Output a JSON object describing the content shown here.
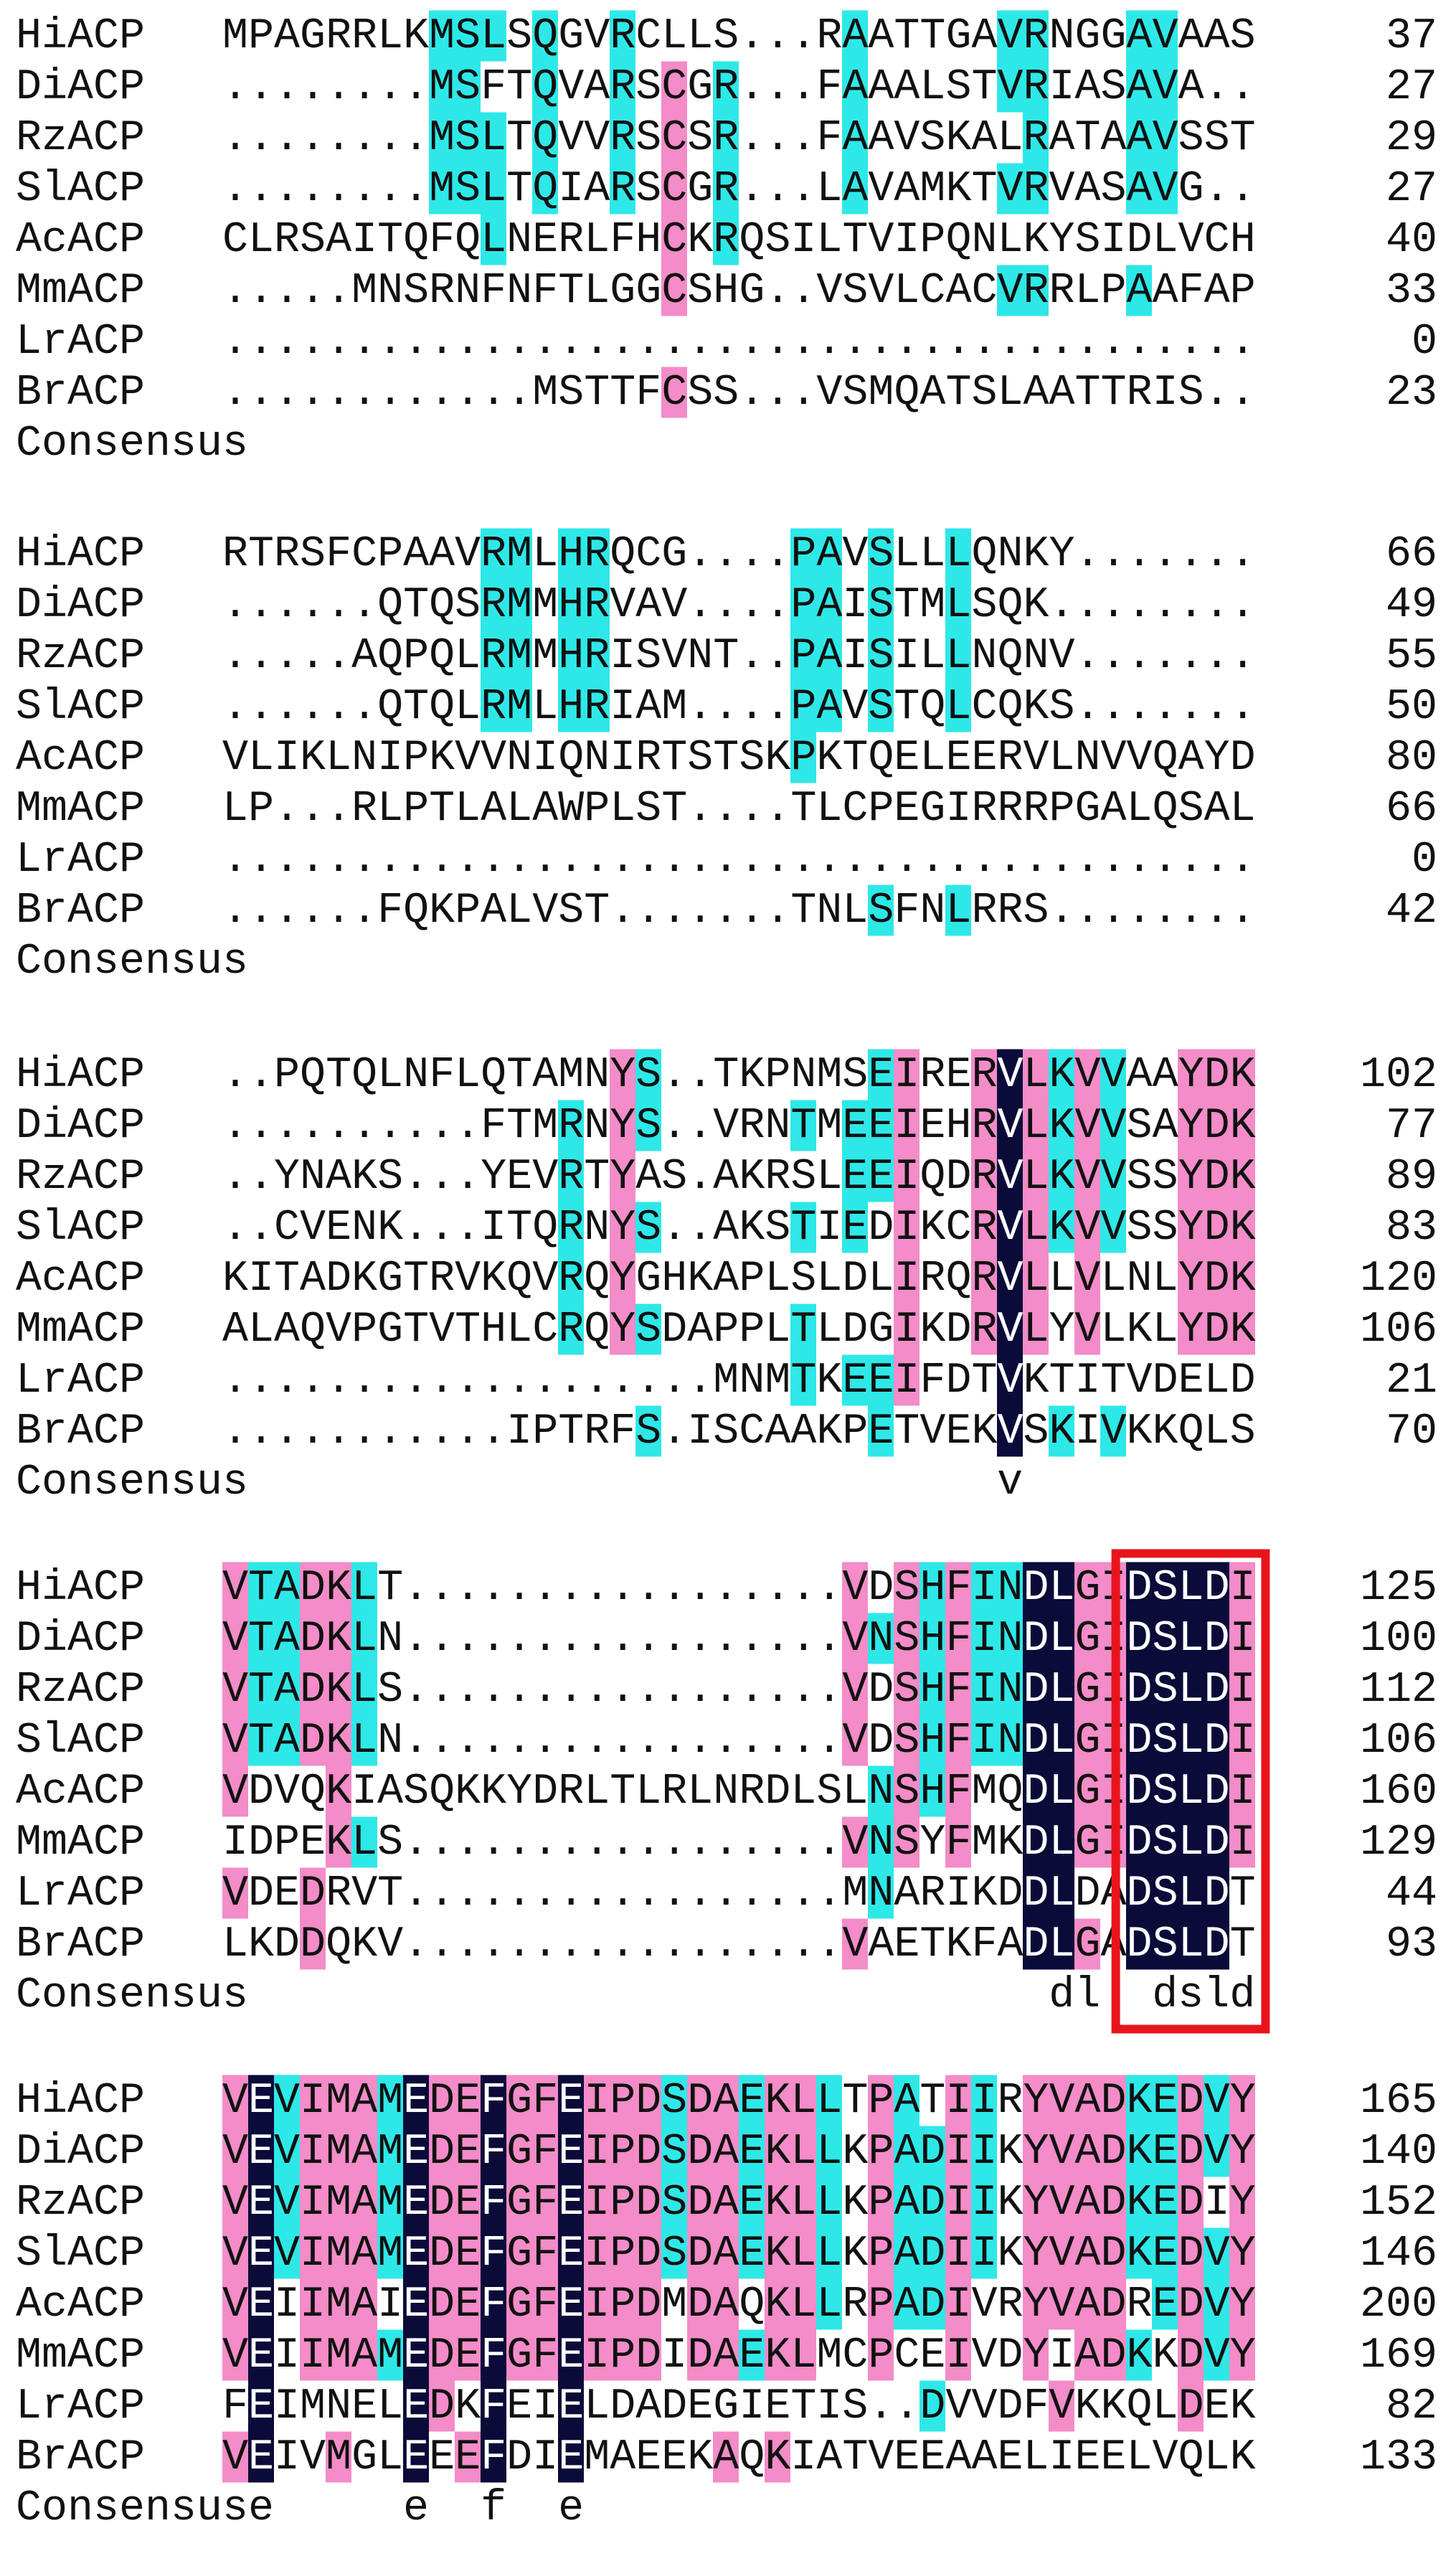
{
  "blocks": [
    {
      "rows": [
        {
          "name": "HiACP",
          "sequence": "MPAGRRLKMSLSQGVRCLLS...RAATTGAVRNGGAVAAS",
          "number": 37
        },
        {
          "name": "DiACP",
          "sequence": "........MSFTQVARSCGR...FAAALSTVRIASAVA..",
          "number": 27
        },
        {
          "name": "RzACP",
          "sequence": "........MSLTQVVRSCSR...FAAVSKALRATAAVSST",
          "number": 29
        },
        {
          "name": "SlACP",
          "sequence": "........MSLTQIARSCGR...LAVAMKTVRVASAVG..",
          "number": 27
        },
        {
          "name": "AcACP",
          "sequence": "CLRSAITQFQLNERLFHCKRQSILTVIPQNLKYSIDLVCH",
          "number": 40
        },
        {
          "name": "MmACP",
          "sequence": ".....MNSRNFNFTLGGCSHG..VSVLCACVRRLPAAFAP",
          "number": 33
        },
        {
          "name": "LrACP",
          "sequence": "........................................",
          "number": 0
        },
        {
          "name": "BrACP",
          "sequence": "............MSTTFCSS...VSMQATSLAATTRIS..",
          "number": 23
        }
      ],
      "consensus_label": "Consensus",
      "consensus": ""
    },
    {
      "rows": [
        {
          "name": "HiACP",
          "sequence": "RTRSFCPAAVRMLHRQCG....PAVSLLLQNKY.......",
          "number": 66
        },
        {
          "name": "DiACP",
          "sequence": "......QTQSRMMHRVAV....PAISTMLSQK........",
          "number": 49
        },
        {
          "name": "RzACP",
          "sequence": ".....AQPQLRMMHRISVNT..PAISILLNQNV.......",
          "number": 55
        },
        {
          "name": "SlACP",
          "sequence": "......QTQLRMLHRIAM....PAVSTQLCQKS.......",
          "number": 50
        },
        {
          "name": "AcACP",
          "sequence": "VLIKLNIPKVVNIQNIRTSTSKPKTQELEERVLNVVQAYD",
          "number": 80
        },
        {
          "name": "MmACP",
          "sequence": "LP...RLPTLALAWPLST....TLCPEGIRRRPGALQSAL",
          "number": 66
        },
        {
          "name": "LrACP",
          "sequence": "........................................",
          "number": 0
        },
        {
          "name": "BrACP",
          "sequence": "......FQKPALVST.......TNLSFNLRRS........",
          "number": 42
        }
      ],
      "consensus_label": "Consensus",
      "consensus": ""
    },
    {
      "rows": [
        {
          "name": "HiACP",
          "sequence": "..PQTQLNFLQTAMNYS..TKPNMSEIRERVLKVVAAYDK",
          "number": 102
        },
        {
          "name": "DiACP",
          "sequence": "..........FTMRNYS..VRNTMEEIEHRVLKVVSAYDK",
          "number": 77
        },
        {
          "name": "RzACP",
          "sequence": "..YNAKS...YEVRTYAS.AKRSLEEIQDRVLKVVSSYDK",
          "number": 89
        },
        {
          "name": "SlACP",
          "sequence": "..CVENK...ITQRNYS..AKSTIEDIKCRVLKVVSSYDK",
          "number": 83
        },
        {
          "name": "AcACP",
          "sequence": "KITADKGTRVKQVRQYGHKAPLSLDLIRQRVLLVLNLYDK",
          "number": 120
        },
        {
          "name": "MmACP",
          "sequence": "ALAQVPGTVTHLCRQYSDAPPLTLDGIKDRVLYVLKLYDK",
          "number": 106
        },
        {
          "name": "LrACP",
          "sequence": "...................MNMTKEEIFDTVKTITVDELD",
          "number": 21
        },
        {
          "name": "BrACP",
          "sequence": "...........IPTRFS.ISCAAKPETVEKVSKIVKKQLS",
          "number": 70
        }
      ],
      "consensus_label": "Consensus",
      "consensus": "                              v"
    },
    {
      "rows": [
        {
          "name": "HiACP",
          "sequence": "VTADKLT.................VDSHFINDLGIDSLDI",
          "number": 125
        },
        {
          "name": "DiACP",
          "sequence": "VTADKLN.................VNSHFINDLGIDSLDI",
          "number": 100
        },
        {
          "name": "RzACP",
          "sequence": "VTADKLS.................VDSHFINDLGIDSLDI",
          "number": 112
        },
        {
          "name": "SlACP",
          "sequence": "VTADKLN.................VDSHFINDLGIDSLDI",
          "number": 106
        },
        {
          "name": "AcACP",
          "sequence": "VDVQKIASQKKYDRLTLRLNRDLSLNSHFMQDLGIDSLDI",
          "number": 160
        },
        {
          "name": "MmACP",
          "sequence": "IDPEKLS.................VNSYFMKDLGIDSLDI",
          "number": 129
        },
        {
          "name": "LrACP",
          "sequence": "VDEDRVT.................MNARIKDDLDADSLDT",
          "number": 44
        },
        {
          "name": "BrACP",
          "sequence": "LKDDQKV.................VAETKFADLGADSLDT",
          "number": 93
        }
      ],
      "consensus_label": "Consensus",
      "consensus": "                                dl  dsld"
    },
    {
      "rows": [
        {
          "name": "HiACP",
          "sequence": "VEVIMAMEDEFGFEIPDSDAEKLLTPATIIRYVADKEDVY",
          "number": 165
        },
        {
          "name": "DiACP",
          "sequence": "VEVIMAMEDEFGFEIPDSDAEKLLKPADIIKYVADKEDVY",
          "number": 140
        },
        {
          "name": "RzACP",
          "sequence": "VEVIMAMEDEFGFEIPDSDAEKLLKPADIIKYVADKEDIY",
          "number": 152
        },
        {
          "name": "SlACP",
          "sequence": "VEVIMAMEDEFGFEIPDSDAEKLLKPADIIKYVADKEDVY",
          "number": 146
        },
        {
          "name": "AcACP",
          "sequence": "VEIIMAIEDEFGFEIPDMDAQKLLRPADIVRYVADREDVY",
          "number": 200
        },
        {
          "name": "MmACP",
          "sequence": "VEIIMAMEDEFGFEIPDIDAEKLMCPCEIVDYIADKKDVY",
          "number": 169
        },
        {
          "name": "LrACP",
          "sequence": "FEIMNELEDKFEIELDADEGIETIS..DVVDFVKKQLDEK",
          "number": 82
        },
        {
          "name": "BrACP",
          "sequence": "VEIVMGLEEEFDIEMAEEKAQKIATVEEAAELIEELVQLK",
          "number": 133
        }
      ],
      "consensus_label": "Consensuse",
      "consensus": "       e  f  e"
    }
  ]
}
